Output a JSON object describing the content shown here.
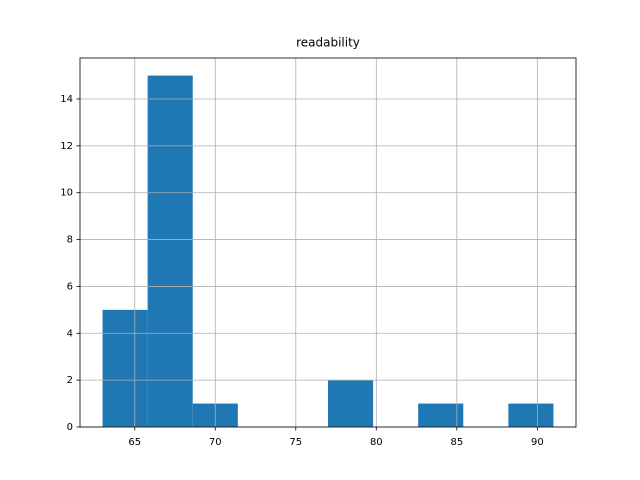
{
  "chart_data": {
    "type": "histogram",
    "title": "readability",
    "bins": [
      63,
      65.8,
      68.6,
      71.4,
      74.2,
      77,
      79.8,
      82.6,
      85.4,
      88.2,
      91
    ],
    "values": [
      5,
      15,
      1,
      0,
      0,
      2,
      0,
      1,
      0,
      1
    ],
    "color": "#1f77b4",
    "xlim": [
      61.6,
      92.4
    ],
    "xticks": [
      65,
      70,
      75,
      80,
      85,
      90
    ],
    "ylim": [
      0,
      15.75
    ],
    "yticks": [
      0,
      2,
      4,
      6,
      8,
      10,
      12,
      14
    ],
    "grid": true
  }
}
